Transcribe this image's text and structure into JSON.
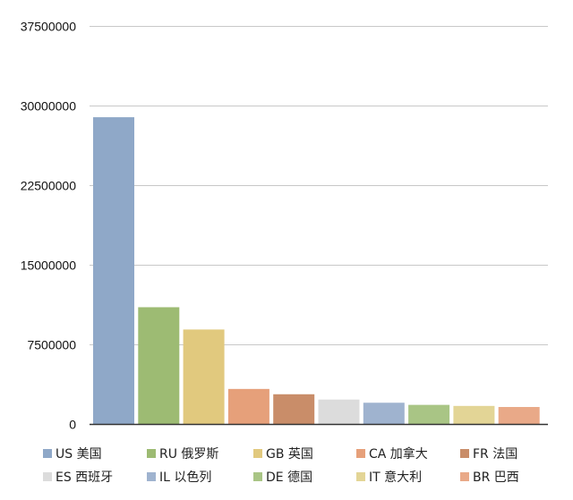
{
  "chart_data": {
    "type": "bar",
    "title": "",
    "xlabel": "",
    "ylabel": "",
    "ylim": [
      0,
      37500000
    ],
    "yticks": [
      0,
      7500000,
      15000000,
      22500000,
      30000000,
      37500000
    ],
    "ytick_labels": [
      "0",
      "7500000",
      "15000000",
      "22500000",
      "30000000",
      "37500000"
    ],
    "grid": true,
    "legend_position": "bottom",
    "categories": [
      "US 美国",
      "RU 俄罗斯",
      "GB 英国",
      "CA 加拿大",
      "FR 法国",
      "ES 西班牙",
      "IL  以色列",
      "DE 德国",
      "IT 意大利",
      "BR 巴西"
    ],
    "values": [
      28900000,
      11000000,
      8900000,
      3300000,
      2800000,
      2300000,
      2000000,
      1800000,
      1700000,
      1600000
    ],
    "colors": [
      "#8fa8c8",
      "#9dbb73",
      "#e1c97e",
      "#e6a07a",
      "#c98d69",
      "#dcdcdc",
      "#9fb3cf",
      "#a9c585",
      "#e3d596",
      "#e9a988"
    ]
  }
}
